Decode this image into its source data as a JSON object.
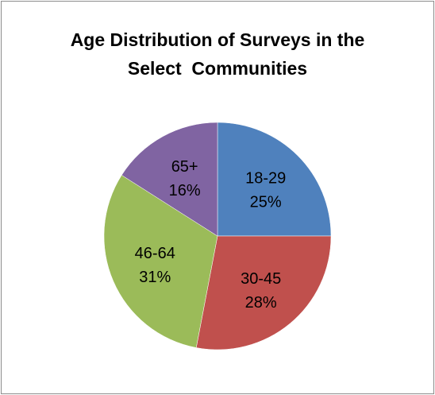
{
  "chart_data": {
    "type": "pie",
    "title_lines": [
      "Age Distribution of Surveys in the",
      "Select  Communities"
    ],
    "slices": [
      {
        "label": "18-29",
        "value": 25,
        "value_label": "25%",
        "color": "#4f81bd"
      },
      {
        "label": "30-45",
        "value": 28,
        "value_label": "28%",
        "color": "#c0504d"
      },
      {
        "label": "46-64",
        "value": 31,
        "value_label": "31%",
        "color": "#9bbb59"
      },
      {
        "label": "65+",
        "value": 16,
        "value_label": "16%",
        "color": "#8064a2"
      }
    ],
    "legend": "none",
    "data_labels": "inside"
  }
}
